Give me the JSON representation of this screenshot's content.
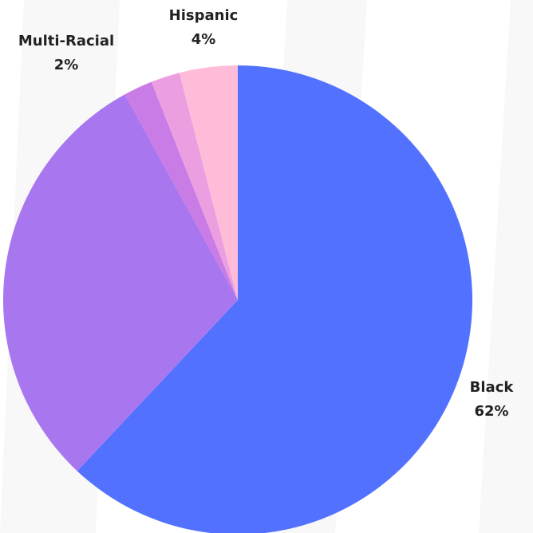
{
  "chart_data": {
    "type": "pie",
    "title": "",
    "slices": [
      {
        "label": "Black",
        "value": 62,
        "display": "62%",
        "color": "#5271ff",
        "show_label": true
      },
      {
        "label": "",
        "value": 30,
        "display": "",
        "color": "#a876ef",
        "show_label": false
      },
      {
        "label": "",
        "value": 2,
        "display": "",
        "color": "#c97be6",
        "show_label": false
      },
      {
        "label": "Multi-Racial",
        "value": 2,
        "display": "2%",
        "color": "#ec9fe0",
        "show_label": true
      },
      {
        "label": "Hispanic",
        "value": 4,
        "display": "4%",
        "color": "#ffbcd9",
        "show_label": true
      }
    ],
    "start_angle_deg": 0,
    "direction": "clockwise",
    "legend": "none",
    "background_color": "#ffffff",
    "pattern_color": "#f4f4f4"
  }
}
